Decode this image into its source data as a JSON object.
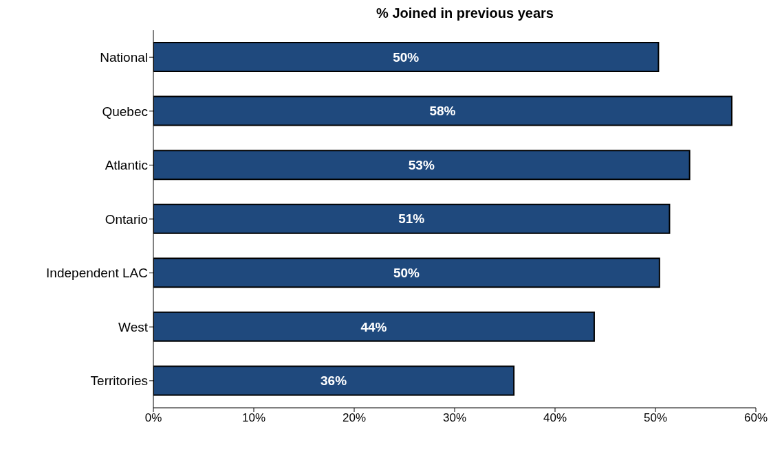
{
  "chart_data": {
    "type": "bar",
    "orientation": "horizontal",
    "title": "% Joined in previous years",
    "categories": [
      "National",
      "Quebec",
      "Atlantic",
      "Ontario",
      "Independent LAC",
      "West",
      "Territories"
    ],
    "values": [
      50.3,
      57.6,
      53.4,
      51.4,
      50.4,
      43.9,
      35.9
    ],
    "value_labels": [
      "50%",
      "58%",
      "53%",
      "51%",
      "50%",
      "44%",
      "36%"
    ],
    "color": "#1f497d",
    "xlim": [
      0,
      60
    ],
    "xticks": [
      {
        "value": 0,
        "label": "0%"
      },
      {
        "value": 10,
        "label": "10%"
      },
      {
        "value": 20,
        "label": "20%"
      },
      {
        "value": 30,
        "label": "30%"
      },
      {
        "value": 40,
        "label": "40%"
      },
      {
        "value": 50,
        "label": "50%"
      },
      {
        "value": 60,
        "label": "60%"
      }
    ],
    "grid": false,
    "legend": false
  }
}
